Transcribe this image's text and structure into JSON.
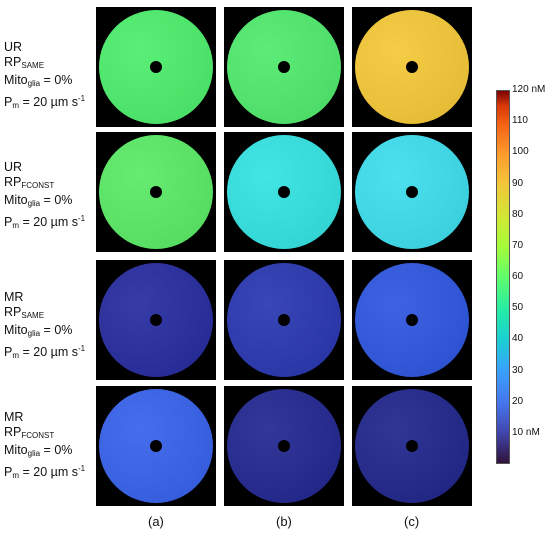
{
  "rows": [
    {
      "l1": "UR",
      "rp": "RP",
      "rp_sub": "SAME",
      "mito": "Mito",
      "mito_sub": "glia",
      "mito_val": " = 0%",
      "pm": "P",
      "pm_sub": "m",
      "pm_val": " = 20 µm s",
      "pm_sup": "-1"
    },
    {
      "l1": "UR",
      "rp": "RP",
      "rp_sub": "FCONST",
      "mito": "Mito",
      "mito_sub": "glia",
      "mito_val": " = 0%",
      "pm": "P",
      "pm_sub": "m",
      "pm_val": " = 20 µm s",
      "pm_sup": "-1"
    },
    {
      "l1": "MR",
      "rp": "RP",
      "rp_sub": "SAME",
      "mito": "Mito",
      "mito_sub": "glia",
      "mito_val": " = 0%",
      "pm": "P",
      "pm_sub": "m",
      "pm_val": " = 20 µm s",
      "pm_sup": "-1"
    },
    {
      "l1": "MR",
      "rp": "RP",
      "rp_sub": "FCONST",
      "mito": "Mito",
      "mito_sub": "glia",
      "mito_val": " = 0%",
      "pm": "P",
      "pm_sub": "m",
      "pm_val": " = 20 µm s",
      "pm_sup": "-1"
    }
  ],
  "columns": [
    "(a)",
    "(b)",
    "(c)"
  ],
  "colorbar": {
    "ticks": [
      "120 nM",
      "110",
      "100",
      "90",
      "80",
      "70",
      "60",
      "50",
      "40",
      "30",
      "20",
      "10 nM"
    ]
  },
  "panel_colors": [
    [
      "#4ee36a",
      "#52e06c",
      "#e9c03a"
    ],
    [
      "#5ae064",
      "#36d8d8",
      "#40d4e2"
    ],
    [
      "#2b2f9a",
      "#2d3aaa",
      "#3156d6"
    ],
    [
      "#3a62e0",
      "#262b8c",
      "#252a88"
    ]
  ]
}
